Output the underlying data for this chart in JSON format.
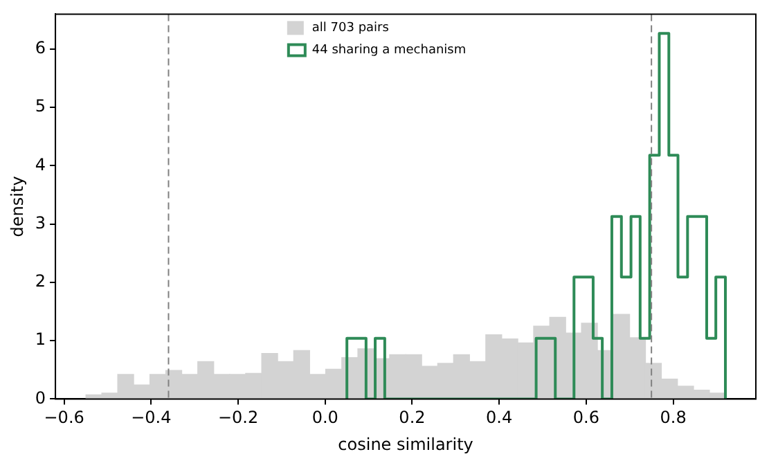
{
  "chart_data": {
    "type": "histogram",
    "xlabel": "cosine similarity",
    "ylabel": "density",
    "xlim": [
      -0.62,
      0.99
    ],
    "ylim": [
      0,
      6.6
    ],
    "xticks": [
      {
        "value": -0.6,
        "label": "−0.6"
      },
      {
        "value": -0.4,
        "label": "−0.4"
      },
      {
        "value": -0.2,
        "label": "−0.2"
      },
      {
        "value": 0,
        "label": "0.0"
      },
      {
        "value": 0.2,
        "label": "0.2"
      },
      {
        "value": 0.4,
        "label": "0.4"
      },
      {
        "value": 0.6,
        "label": "0.6"
      },
      {
        "value": 0.8,
        "label": "0.8"
      }
    ],
    "yticks": [
      0,
      1,
      2,
      3,
      4,
      5,
      6
    ],
    "grid": false,
    "legend": "top",
    "series": [
      {
        "name": "all 703 pairs",
        "color": "#d3d3d3",
        "bins": [
          -0.55,
          -0.513,
          -0.477,
          -0.44,
          -0.403,
          -0.366,
          -0.33,
          -0.293,
          -0.256,
          -0.219,
          -0.183,
          -0.146,
          -0.109,
          -0.072,
          -0.036,
          0.001,
          0.038,
          0.075,
          0.112,
          0.148,
          0.185,
          0.222,
          0.259,
          0.295,
          0.332,
          0.369,
          0.406,
          0.443,
          0.479,
          0.516,
          0.553,
          0.589,
          0.626,
          0.663,
          0.7,
          0.736,
          0.773,
          0.81,
          0.847,
          0.883,
          0.92
        ],
        "values": [
          0.07,
          0.1,
          0.42,
          0.24,
          0.42,
          0.49,
          0.42,
          0.64,
          0.42,
          0.42,
          0.44,
          0.78,
          0.64,
          0.83,
          0.42,
          0.51,
          0.71,
          0.86,
          0.69,
          0.76,
          0.76,
          0.56,
          0.61,
          0.76,
          0.64,
          1.1,
          1.03,
          0.96,
          1.25,
          1.4,
          1.13,
          1.3,
          0.83,
          1.45,
          1.05,
          0.61,
          0.34,
          0.22,
          0.15,
          0.1
        ]
      },
      {
        "name": "44 sharing a mechanism",
        "type": "step",
        "color": "#2e8b57",
        "x": [
          0.05,
          0.05,
          0.072,
          0.094,
          0.115,
          0.137,
          0.159,
          0.181,
          0.202,
          0.224,
          0.246,
          0.268,
          0.289,
          0.311,
          0.333,
          0.355,
          0.376,
          0.398,
          0.42,
          0.442,
          0.463,
          0.485,
          0.507,
          0.529,
          0.55,
          0.572,
          0.594,
          0.616,
          0.637,
          0.659,
          0.681,
          0.703,
          0.724,
          0.746,
          0.768,
          0.79,
          0.811,
          0.833,
          0.855,
          0.877,
          0.898,
          0.92
        ],
        "values": [
          0,
          1.04,
          1.04,
          0,
          1.04,
          0,
          0,
          0,
          0,
          0,
          0,
          0,
          0,
          0,
          0,
          0,
          0,
          0,
          0,
          0,
          0,
          1.04,
          1.04,
          0,
          0,
          2.09,
          2.09,
          1.04,
          0,
          3.13,
          2.09,
          3.13,
          1.04,
          4.18,
          6.27,
          4.18,
          2.09,
          3.13,
          3.13,
          1.04,
          2.09,
          0
        ]
      }
    ],
    "ref_lines": [
      {
        "axis": "x",
        "value": -0.36,
        "color": "#808080",
        "line_style": "dashed"
      },
      {
        "axis": "x",
        "value": 0.75,
        "color": "#808080",
        "line_style": "dashed"
      }
    ]
  }
}
